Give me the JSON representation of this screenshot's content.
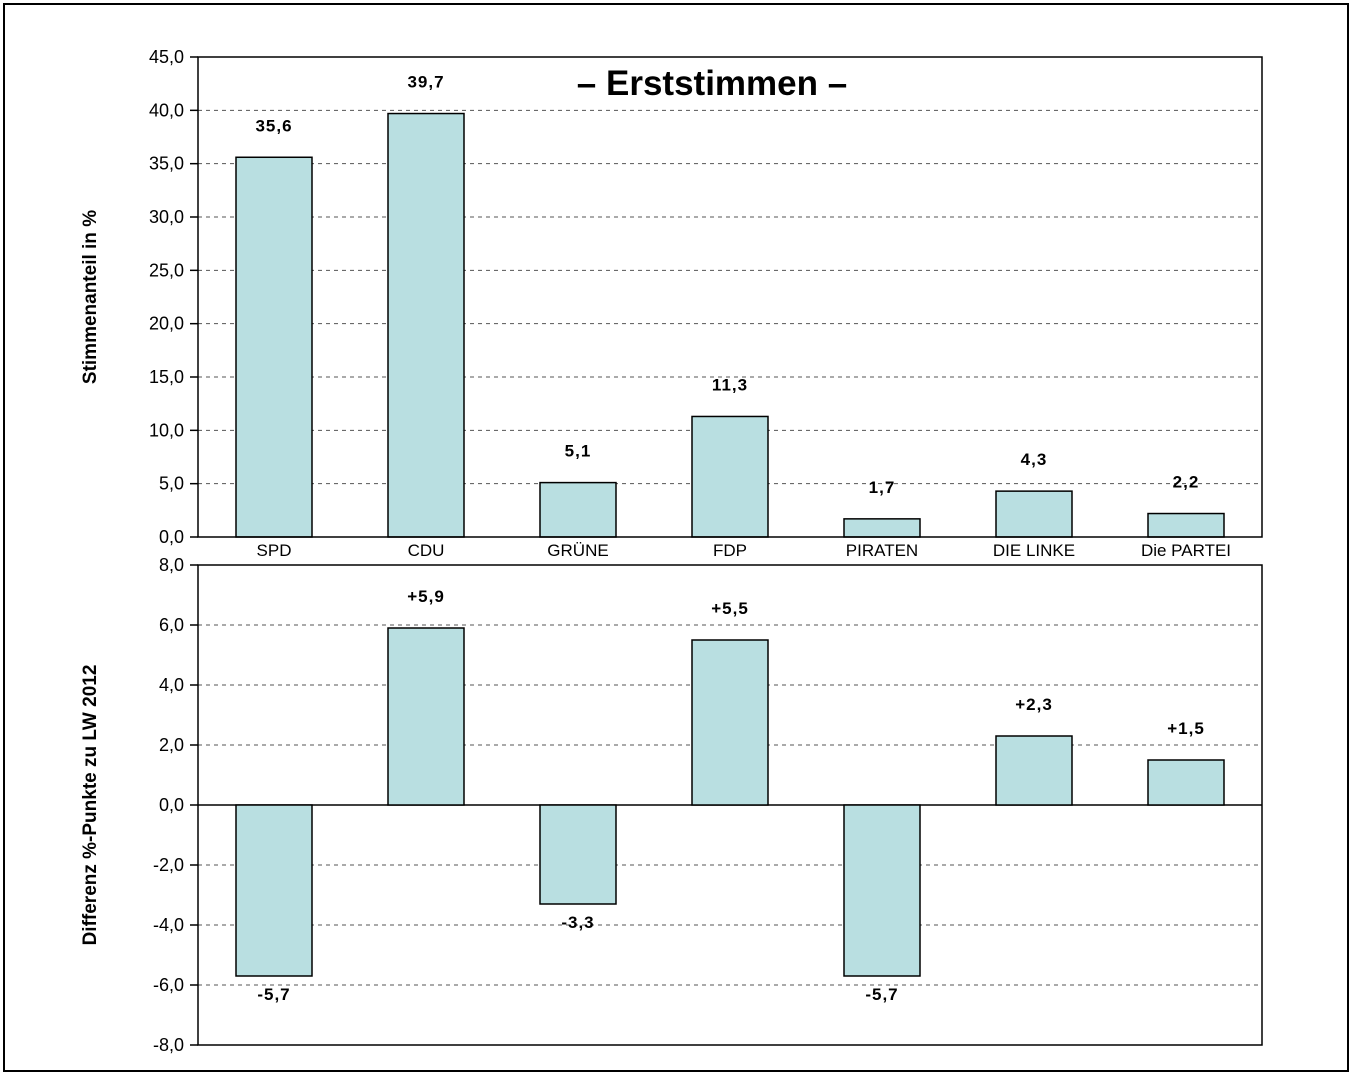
{
  "colors": {
    "bar_fill": "#b9dfe1",
    "bar_stroke": "#000000",
    "grid": "#555555",
    "frame": "#000000"
  },
  "chart_data": [
    {
      "type": "bar",
      "title": "– Erststimmen –",
      "ylabel": "Stimmenanteil in %",
      "xlabel": "",
      "categories": [
        "SPD",
        "CDU",
        "GRÜNE",
        "FDP",
        "PIRATEN",
        "DIE LINKE",
        "Die PARTEI"
      ],
      "values": [
        35.6,
        39.7,
        5.1,
        11.3,
        1.7,
        4.3,
        2.2
      ],
      "value_labels": [
        "35,6",
        "39,7",
        "5,1",
        "11,3",
        "1,7",
        "4,3",
        "2,2"
      ],
      "ylim": [
        0,
        45
      ],
      "yticks": [
        0,
        5,
        10,
        15,
        20,
        25,
        30,
        35,
        40,
        45
      ],
      "ytick_labels": [
        "0,0",
        "5,0",
        "10,0",
        "15,0",
        "20,0",
        "25,0",
        "30,0",
        "35,0",
        "40,0",
        "45,0"
      ],
      "grid": true
    },
    {
      "type": "bar",
      "title": "",
      "ylabel": "Differenz %-Punkte zu LW 2012",
      "xlabel": "",
      "categories": [
        "SPD",
        "CDU",
        "GRÜNE",
        "FDP",
        "PIRATEN",
        "DIE LINKE",
        "Die PARTEI"
      ],
      "values": [
        -5.7,
        5.9,
        -3.3,
        5.5,
        -5.7,
        2.3,
        1.5
      ],
      "value_labels": [
        "-5,7",
        "+5,9",
        "-3,3",
        "+5,5",
        "-5,7",
        "+2,3",
        "+1,5"
      ],
      "ylim": [
        -8,
        8
      ],
      "yticks": [
        -8,
        -6,
        -4,
        -2,
        0,
        2,
        4,
        6,
        8
      ],
      "ytick_labels": [
        "-8,0",
        "-6,0",
        "-4,0",
        "-2,0",
        "0,0",
        "2,0",
        "4,0",
        "6,0",
        "8,0"
      ],
      "grid": true
    }
  ]
}
